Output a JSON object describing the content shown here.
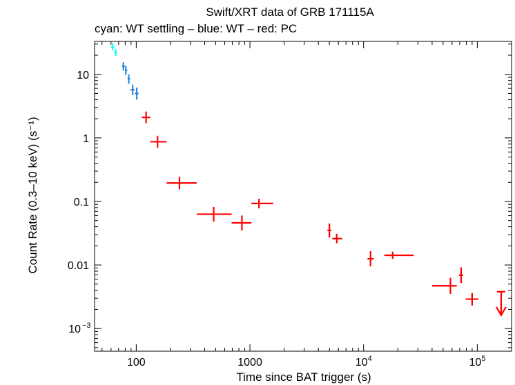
{
  "chart_data": {
    "type": "scatter",
    "title": "Swift/XRT data of GRB 171115A",
    "subtitle": "cyan: WT settling – blue: WT – red: PC",
    "xlabel": "Time since BAT trigger (s)",
    "ylabel": "Count Rate (0.3–10 keV) (s⁻¹)",
    "xscale": "log",
    "yscale": "log",
    "xlim": [
      43,
      200000
    ],
    "ylim": [
      0.00044,
      33
    ],
    "x_ticks": [
      {
        "value": 100,
        "label": "100",
        "sup": ""
      },
      {
        "value": 1000,
        "label": "1000",
        "sup": ""
      },
      {
        "value": 10000,
        "label": "10",
        "sup": "4"
      },
      {
        "value": 100000,
        "label": "10",
        "sup": "5"
      }
    ],
    "y_ticks": [
      {
        "value": 10,
        "label": "10",
        "sup": ""
      },
      {
        "value": 1,
        "label": "1",
        "sup": ""
      },
      {
        "value": 0.1,
        "label": "0.1",
        "sup": ""
      },
      {
        "value": 0.01,
        "label": "0.01",
        "sup": ""
      },
      {
        "value": 0.001,
        "label": "10",
        "sup": "−3"
      }
    ],
    "series": [
      {
        "name": "WT settling",
        "color": "#00ffff",
        "points": [
          {
            "x": 62,
            "xlo": 60,
            "xhi": 64,
            "y": 27,
            "ylo": 24,
            "yhi": 31
          },
          {
            "x": 66,
            "xlo": 64,
            "xhi": 68,
            "y": 22,
            "ylo": 19.5,
            "yhi": 25
          }
        ]
      },
      {
        "name": "WT",
        "color": "#1f7fe0",
        "points": [
          {
            "x": 77,
            "xlo": 75,
            "xhi": 79.5,
            "y": 13.5,
            "ylo": 11.5,
            "yhi": 15.5
          },
          {
            "x": 81,
            "xlo": 79.5,
            "xhi": 83.5,
            "y": 11.5,
            "ylo": 9.8,
            "yhi": 13.5
          },
          {
            "x": 86,
            "xlo": 84,
            "xhi": 88.5,
            "y": 8.5,
            "ylo": 7.1,
            "yhi": 10
          },
          {
            "x": 93,
            "xlo": 89,
            "xhi": 97,
            "y": 5.7,
            "ylo": 4.7,
            "yhi": 6.9
          },
          {
            "x": 101,
            "xlo": 97,
            "xhi": 105,
            "y": 5.0,
            "ylo": 4.0,
            "yhi": 6.2
          }
        ]
      },
      {
        "name": "PC",
        "color": "#ff0000",
        "points": [
          {
            "x": 122,
            "xlo": 112,
            "xhi": 133,
            "y": 2.1,
            "ylo": 1.7,
            "yhi": 2.6
          },
          {
            "x": 154,
            "xlo": 133,
            "xhi": 185,
            "y": 0.87,
            "ylo": 0.7,
            "yhi": 1.08
          },
          {
            "x": 240,
            "xlo": 185,
            "xhi": 340,
            "y": 0.195,
            "ylo": 0.155,
            "yhi": 0.245
          },
          {
            "x": 480,
            "xlo": 340,
            "xhi": 690,
            "y": 0.063,
            "ylo": 0.048,
            "yhi": 0.082
          },
          {
            "x": 850,
            "xlo": 690,
            "xhi": 1030,
            "y": 0.046,
            "ylo": 0.035,
            "yhi": 0.06
          },
          {
            "x": 1200,
            "xlo": 1030,
            "xhi": 1600,
            "y": 0.093,
            "ylo": 0.078,
            "yhi": 0.11
          },
          {
            "x": 5000,
            "xlo": 4800,
            "xhi": 5200,
            "y": 0.035,
            "ylo": 0.027,
            "yhi": 0.045
          },
          {
            "x": 5800,
            "xlo": 5300,
            "xhi": 6500,
            "y": 0.026,
            "ylo": 0.022,
            "yhi": 0.031
          },
          {
            "x": 11500,
            "xlo": 10800,
            "xhi": 12300,
            "y": 0.0125,
            "ylo": 0.0095,
            "yhi": 0.0165
          },
          {
            "x": 18000,
            "xlo": 15200,
            "xhi": 27500,
            "y": 0.0142,
            "ylo": 0.0125,
            "yhi": 0.0162
          },
          {
            "x": 58000,
            "xlo": 40000,
            "xhi": 66000,
            "y": 0.0047,
            "ylo": 0.0035,
            "yhi": 0.0063
          },
          {
            "x": 72000,
            "xlo": 69000,
            "xhi": 75000,
            "y": 0.0069,
            "ylo": 0.0052,
            "yhi": 0.0092
          },
          {
            "x": 90000,
            "xlo": 79000,
            "xhi": 102000,
            "y": 0.0029,
            "ylo": 0.0023,
            "yhi": 0.0036
          }
        ],
        "upper_limits": [
          {
            "x": 162000,
            "y": 0.0038
          }
        ]
      }
    ]
  }
}
